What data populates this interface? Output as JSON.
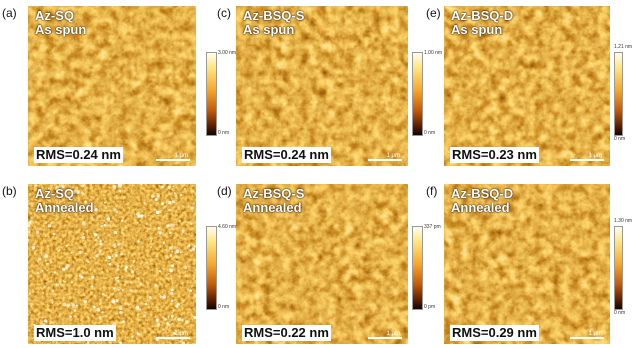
{
  "panels": [
    {
      "letter": "(a)",
      "sample": "Az-SQ",
      "state": "As spun",
      "rms": "RMS=0.24 nm",
      "scale": "1 μm",
      "cmax": "3.00 nm",
      "cmin": "0 nm"
    },
    {
      "letter": "(c)",
      "sample": "Az-BSQ-S",
      "state": "As spun",
      "rms": "RMS=0.24 nm",
      "scale": "1 μm",
      "cmax": "1.00 nm",
      "cmin": "0 nm"
    },
    {
      "letter": "(e)",
      "sample": "Az-BSQ-D",
      "state": "As spun",
      "rms": "RMS=0.23 nm",
      "scale": "1 μm",
      "cmax": "1.21 nm",
      "cmin": "0 nm"
    },
    {
      "letter": "(b)",
      "sample": "Az-SQ",
      "state": "Annealed",
      "rms": "RMS=1.0 nm",
      "scale": "1 μm",
      "cmax": "4.60 nm",
      "cmin": "0 nm"
    },
    {
      "letter": "(d)",
      "sample": "Az-BSQ-S",
      "state": "Annealed",
      "rms": "RMS=0.22 nm",
      "scale": "1 μm",
      "cmax": "337 pm",
      "cmin": "0 pm"
    },
    {
      "letter": "(f)",
      "sample": "Az-BSQ-D",
      "state": "Annealed",
      "rms": "RMS=0.29 nm",
      "scale": "1 μm",
      "cmax": "1.30 nm",
      "cmin": "0 nm"
    }
  ],
  "colors": {
    "afm_dark": "#1a0600",
    "afm_mid": "#b5560a",
    "afm_bright": "#ffd76a",
    "afm_highlight": "#fffbe6"
  }
}
